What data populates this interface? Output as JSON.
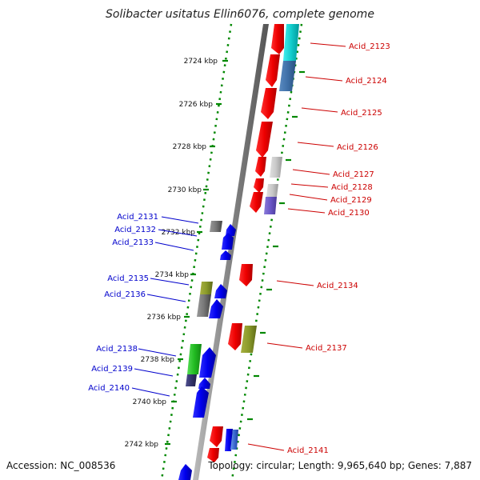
{
  "title": "Solibacter usitatus Ellin6076, complete genome",
  "footer": {
    "accession": "Accession: NC_008536",
    "summary": "Topology: circular; Length: 9,965,640 bp; Genes: 7,887"
  },
  "colors": {
    "forward_label": "#cc0000",
    "reverse_label": "#0000cc",
    "backbone": "#808080",
    "scale_dots": "#008800"
  },
  "ticks": [
    "2724 kbp",
    "2726 kbp",
    "2728 kbp",
    "2730 kbp",
    "2732 kbp",
    "2734 kbp",
    "2736 kbp",
    "2738 kbp",
    "2740 kbp",
    "2742 kbp"
  ],
  "right_labels": [
    "Acid_2123",
    "Acid_2124",
    "Acid_2125",
    "Acid_2126",
    "Acid_2127",
    "Acid_2128",
    "Acid_2129",
    "Acid_2130",
    "Acid_2134",
    "Acid_2137",
    "Acid_2141"
  ],
  "left_labels": [
    "Acid_2131",
    "Acid_2132",
    "Acid_2133",
    "Acid_2135",
    "Acid_2136",
    "Acid_2138",
    "Acid_2139",
    "Acid_2140"
  ]
}
